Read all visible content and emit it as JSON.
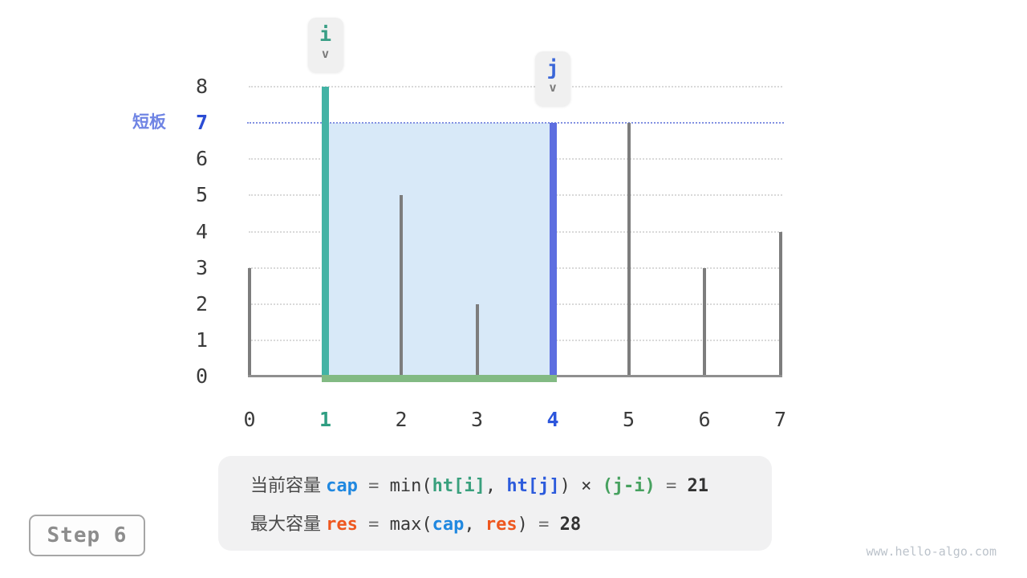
{
  "site": {
    "watermark": "www.hello-algo.com"
  },
  "step_badge": {
    "label": "Step 6"
  },
  "pointers": {
    "i": {
      "label": "i",
      "arrow": "v"
    },
    "j": {
      "label": "j",
      "arrow": "v"
    }
  },
  "chart_data": {
    "type": "bar",
    "title": "",
    "xlabel": "",
    "ylabel": "",
    "x": [
      0,
      1,
      2,
      3,
      4,
      5,
      6,
      7
    ],
    "heights": [
      3,
      8,
      5,
      2,
      7,
      7,
      3,
      4
    ],
    "ylim": [
      0,
      8
    ],
    "y_ticks": [
      0,
      1,
      2,
      3,
      4,
      5,
      6,
      7,
      8
    ],
    "i_index": 1,
    "j_index": 4,
    "short_board": {
      "label": "短板",
      "value": 7
    },
    "water_fill": {
      "from": 1,
      "to": 4,
      "top": 7
    },
    "grid": "dotted horizontal",
    "colors": {
      "bar_default": "#7d7d7d",
      "bar_i": "#43b3a5",
      "bar_j": "#5d6ee0",
      "water_fill": "#d8e9f8",
      "width_baseline": "#82ba83",
      "short_board_line": "#8392e2",
      "axis": "#8f8f8f",
      "gridline": "#d9d9d9"
    }
  },
  "formula": {
    "line1": [
      {
        "t": "当前容量 ",
        "c": "label"
      },
      {
        "t": "cap",
        "c": "blue"
      },
      {
        "t": " = ",
        "c": "eq"
      },
      {
        "t": "min(",
        "c": "code"
      },
      {
        "t": "ht[i]",
        "c": "teal"
      },
      {
        "t": ", ",
        "c": "code"
      },
      {
        "t": "ht[j]",
        "c": "blue2"
      },
      {
        "t": ") × ",
        "c": "code"
      },
      {
        "t": "(j-i)",
        "c": "green"
      },
      {
        "t": " = ",
        "c": "eq"
      },
      {
        "t": "21",
        "c": "result"
      }
    ],
    "line2": [
      {
        "t": "最大容量 ",
        "c": "label"
      },
      {
        "t": "res",
        "c": "orange"
      },
      {
        "t": " = ",
        "c": "eq"
      },
      {
        "t": "max(",
        "c": "code"
      },
      {
        "t": "cap",
        "c": "blue"
      },
      {
        "t": ", ",
        "c": "code"
      },
      {
        "t": "res",
        "c": "orange"
      },
      {
        "t": ")",
        "c": "code"
      },
      {
        "t": " = ",
        "c": "eq"
      },
      {
        "t": "28",
        "c": "result"
      }
    ]
  }
}
